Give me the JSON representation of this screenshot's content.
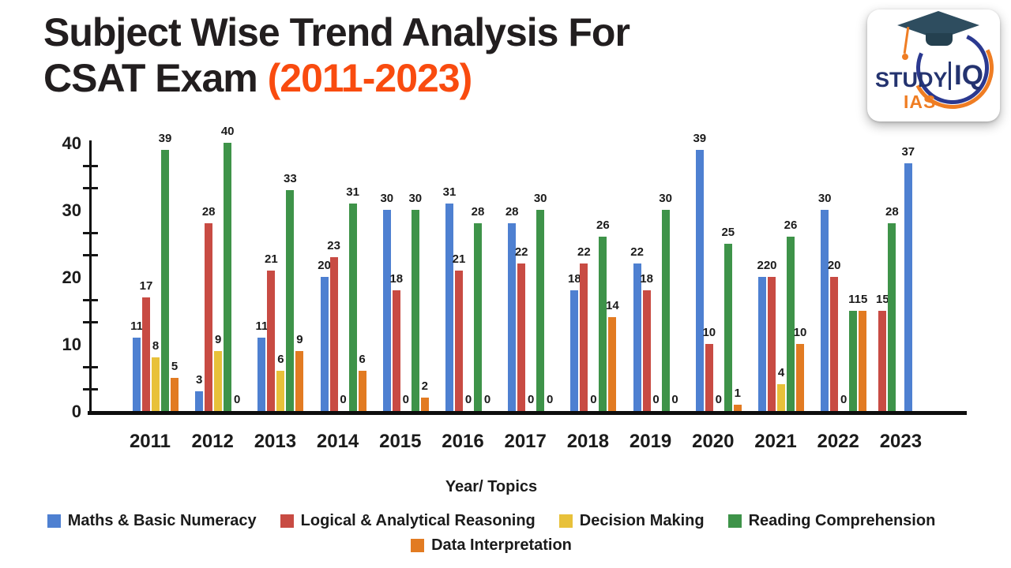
{
  "title": {
    "line1": "Subject Wise Trend Analysis For",
    "line2_black": "CSAT Exam ",
    "line2_accent": "(2011-2023)",
    "accent_color": "#f94b0f",
    "text_color": "#221e1f"
  },
  "logo": {
    "study": "STUDY",
    "iq": "IQ",
    "ias": "IAS",
    "navy": "#24336f",
    "orange": "#ef7d23"
  },
  "chart_data": {
    "type": "bar",
    "title": "Subject Wise Trend Analysis For CSAT Exam (2011-2023)",
    "xlabel": "Year/ Topics",
    "ylabel": "",
    "ylim": [
      0,
      40
    ],
    "yticks": [
      0,
      10,
      20,
      30,
      40
    ],
    "grid": false,
    "legend_position": "bottom",
    "categories": [
      "2011",
      "2012",
      "2013",
      "2014",
      "2015",
      "2016",
      "2017",
      "2018",
      "2019",
      "2020",
      "2021",
      "2022",
      "2023"
    ],
    "series": [
      {
        "name": "Maths & Basic Numeracy",
        "color": "#4e80d1",
        "values": [
          11,
          3,
          11,
          20,
          30,
          31,
          28,
          18,
          22,
          39,
          20,
          30,
          37
        ]
      },
      {
        "name": "Logical & Analytical Reasoning",
        "color": "#c84b43",
        "values": [
          17,
          28,
          21,
          23,
          18,
          21,
          22,
          22,
          18,
          10,
          20,
          20,
          15
        ]
      },
      {
        "name": "Decision Making",
        "color": "#e8c13a",
        "values": [
          8,
          9,
          6,
          0,
          0,
          0,
          0,
          0,
          0,
          0,
          4,
          0,
          0
        ]
      },
      {
        "name": "Reading Comprehension",
        "color": "#3e9349",
        "values": [
          39,
          40,
          33,
          31,
          30,
          28,
          30,
          26,
          30,
          25,
          26,
          15,
          28
        ]
      },
      {
        "name": "Data Interpretation",
        "color": "#e27b22",
        "values": [
          5,
          0,
          9,
          6,
          2,
          0,
          0,
          14,
          0,
          1,
          10,
          15,
          0
        ]
      }
    ],
    "legend_rows": [
      [
        0,
        1,
        2,
        3
      ],
      [
        4
      ]
    ],
    "groups": [
      {
        "year": "2011",
        "bars": [
          {
            "s": 0,
            "slot": 0,
            "v": 11,
            "l": "11"
          },
          {
            "s": 1,
            "slot": 1,
            "v": 17,
            "l": "17"
          },
          {
            "s": 2,
            "slot": 2,
            "v": 8,
            "l": "8"
          },
          {
            "s": 3,
            "slot": 3,
            "v": 39,
            "l": "39"
          },
          {
            "s": 4,
            "slot": 4,
            "v": 5,
            "l": "5"
          }
        ]
      },
      {
        "year": "2012",
        "bars": [
          {
            "s": 0,
            "slot": 0,
            "v": 3,
            "l": "3"
          },
          {
            "s": 1,
            "slot": 1,
            "v": 28,
            "l": "28"
          },
          {
            "s": 2,
            "slot": 2,
            "v": 9,
            "l": "9"
          },
          {
            "s": 3,
            "slot": 3,
            "v": 40,
            "l": "40"
          },
          {
            "s": 4,
            "slot": 4,
            "v": 0,
            "l": "0"
          }
        ]
      },
      {
        "year": "2013",
        "bars": [
          {
            "s": 0,
            "slot": 0,
            "v": 11,
            "l": "11"
          },
          {
            "s": 1,
            "slot": 1,
            "v": 21,
            "l": "21"
          },
          {
            "s": 2,
            "slot": 2,
            "v": 6,
            "l": "6"
          },
          {
            "s": 3,
            "slot": 3,
            "v": 33,
            "l": "33"
          },
          {
            "s": 4,
            "slot": 4,
            "v": 9,
            "l": "9"
          }
        ]
      },
      {
        "year": "2014",
        "bars": [
          {
            "s": 0,
            "slot": 0,
            "v": 20,
            "l": "20"
          },
          {
            "s": 1,
            "slot": 1,
            "v": 23,
            "l": "23"
          },
          {
            "s": 2,
            "slot": 2,
            "v": 0,
            "l": "0"
          },
          {
            "s": 3,
            "slot": 3,
            "v": 31,
            "l": "31"
          },
          {
            "s": 4,
            "slot": 4,
            "v": 6,
            "l": "6"
          }
        ]
      },
      {
        "year": "2015",
        "bars": [
          {
            "s": 0,
            "slot": 0,
            "v": 30,
            "l": "30"
          },
          {
            "s": 1,
            "slot": 1,
            "v": 18,
            "l": "18"
          },
          {
            "s": 2,
            "slot": 2,
            "v": 0,
            "l": "0"
          },
          {
            "s": 3,
            "slot": 3,
            "v": 30,
            "l": "30"
          },
          {
            "s": 4,
            "slot": 4,
            "v": 2,
            "l": "2"
          }
        ]
      },
      {
        "year": "2016",
        "bars": [
          {
            "s": 0,
            "slot": 0,
            "v": 31,
            "l": "31"
          },
          {
            "s": 1,
            "slot": 1,
            "v": 21,
            "l": "21"
          },
          {
            "s": 2,
            "slot": 2,
            "v": 0,
            "l": "0"
          },
          {
            "s": 3,
            "slot": 3,
            "v": 28,
            "l": "28"
          },
          {
            "s": 4,
            "slot": 4,
            "v": 0,
            "l": "0"
          }
        ]
      },
      {
        "year": "2017",
        "bars": [
          {
            "s": 0,
            "slot": 0,
            "v": 28,
            "l": "28"
          },
          {
            "s": 1,
            "slot": 1,
            "v": 22,
            "l": "22"
          },
          {
            "s": 2,
            "slot": 2,
            "v": 0,
            "l": "0"
          },
          {
            "s": 3,
            "slot": 3,
            "v": 30,
            "l": "30"
          },
          {
            "s": 4,
            "slot": 4,
            "v": 0,
            "l": "0"
          }
        ]
      },
      {
        "year": "2018",
        "bars": [
          {
            "s": 0,
            "slot": 0,
            "v": 18,
            "l": "18"
          },
          {
            "s": 1,
            "slot": 1,
            "v": 22,
            "l": "22"
          },
          {
            "s": 2,
            "slot": 2,
            "v": 0,
            "l": "0"
          },
          {
            "s": 3,
            "slot": 3,
            "v": 26,
            "l": "26"
          },
          {
            "s": 4,
            "slot": 4,
            "v": 14,
            "l": "14"
          }
        ]
      },
      {
        "year": "2019",
        "bars": [
          {
            "s": 0,
            "slot": 0,
            "v": 22,
            "l": "22"
          },
          {
            "s": 1,
            "slot": 1,
            "v": 18,
            "l": "18"
          },
          {
            "s": 2,
            "slot": 2,
            "v": 0,
            "l": "0"
          },
          {
            "s": 3,
            "slot": 3,
            "v": 30,
            "l": "30"
          },
          {
            "s": 4,
            "slot": 4,
            "v": 0,
            "l": "0"
          }
        ]
      },
      {
        "year": "2020",
        "bars": [
          {
            "s": 0,
            "slot": 0,
            "v": 39,
            "l": "39"
          },
          {
            "s": 1,
            "slot": 1,
            "v": 10,
            "l": "10"
          },
          {
            "s": 2,
            "slot": 2,
            "v": 0,
            "l": "0"
          },
          {
            "s": 3,
            "slot": 3,
            "v": 25,
            "l": "25"
          },
          {
            "s": 4,
            "slot": 4,
            "v": 1,
            "l": "1"
          }
        ]
      },
      {
        "year": "2021",
        "bars": [
          {
            "s": 0,
            "slot": 0,
            "v": 20,
            "l": "220",
            "dx": 6
          },
          {
            "s": 1,
            "slot": 1,
            "v": 20,
            "l": ""
          },
          {
            "s": 2,
            "slot": 2,
            "v": 4,
            "l": "4"
          },
          {
            "s": 3,
            "slot": 3,
            "v": 26,
            "l": "26"
          },
          {
            "s": 4,
            "slot": 4,
            "v": 10,
            "l": "10"
          }
        ]
      },
      {
        "year": "2022",
        "bars": [
          {
            "s": 0,
            "slot": 0,
            "v": 30,
            "l": "30"
          },
          {
            "s": 1,
            "slot": 1,
            "v": 20,
            "l": "20"
          },
          {
            "s": 2,
            "slot": 2,
            "v": 0,
            "l": "0"
          },
          {
            "s": 3,
            "slot": 3,
            "v": 15,
            "l": "115",
            "dx": 6
          },
          {
            "s": 4,
            "slot": 4,
            "v": 15,
            "l": ""
          }
        ]
      },
      {
        "year": "2023",
        "bars": [
          {
            "s": 1,
            "slot": -0.5,
            "v": 15,
            "l": "15"
          },
          {
            "s": 3,
            "slot": 0.5,
            "v": 28,
            "l": "28"
          },
          {
            "s": 0,
            "slot": 2.2,
            "v": 37,
            "l": "37"
          }
        ]
      }
    ]
  }
}
